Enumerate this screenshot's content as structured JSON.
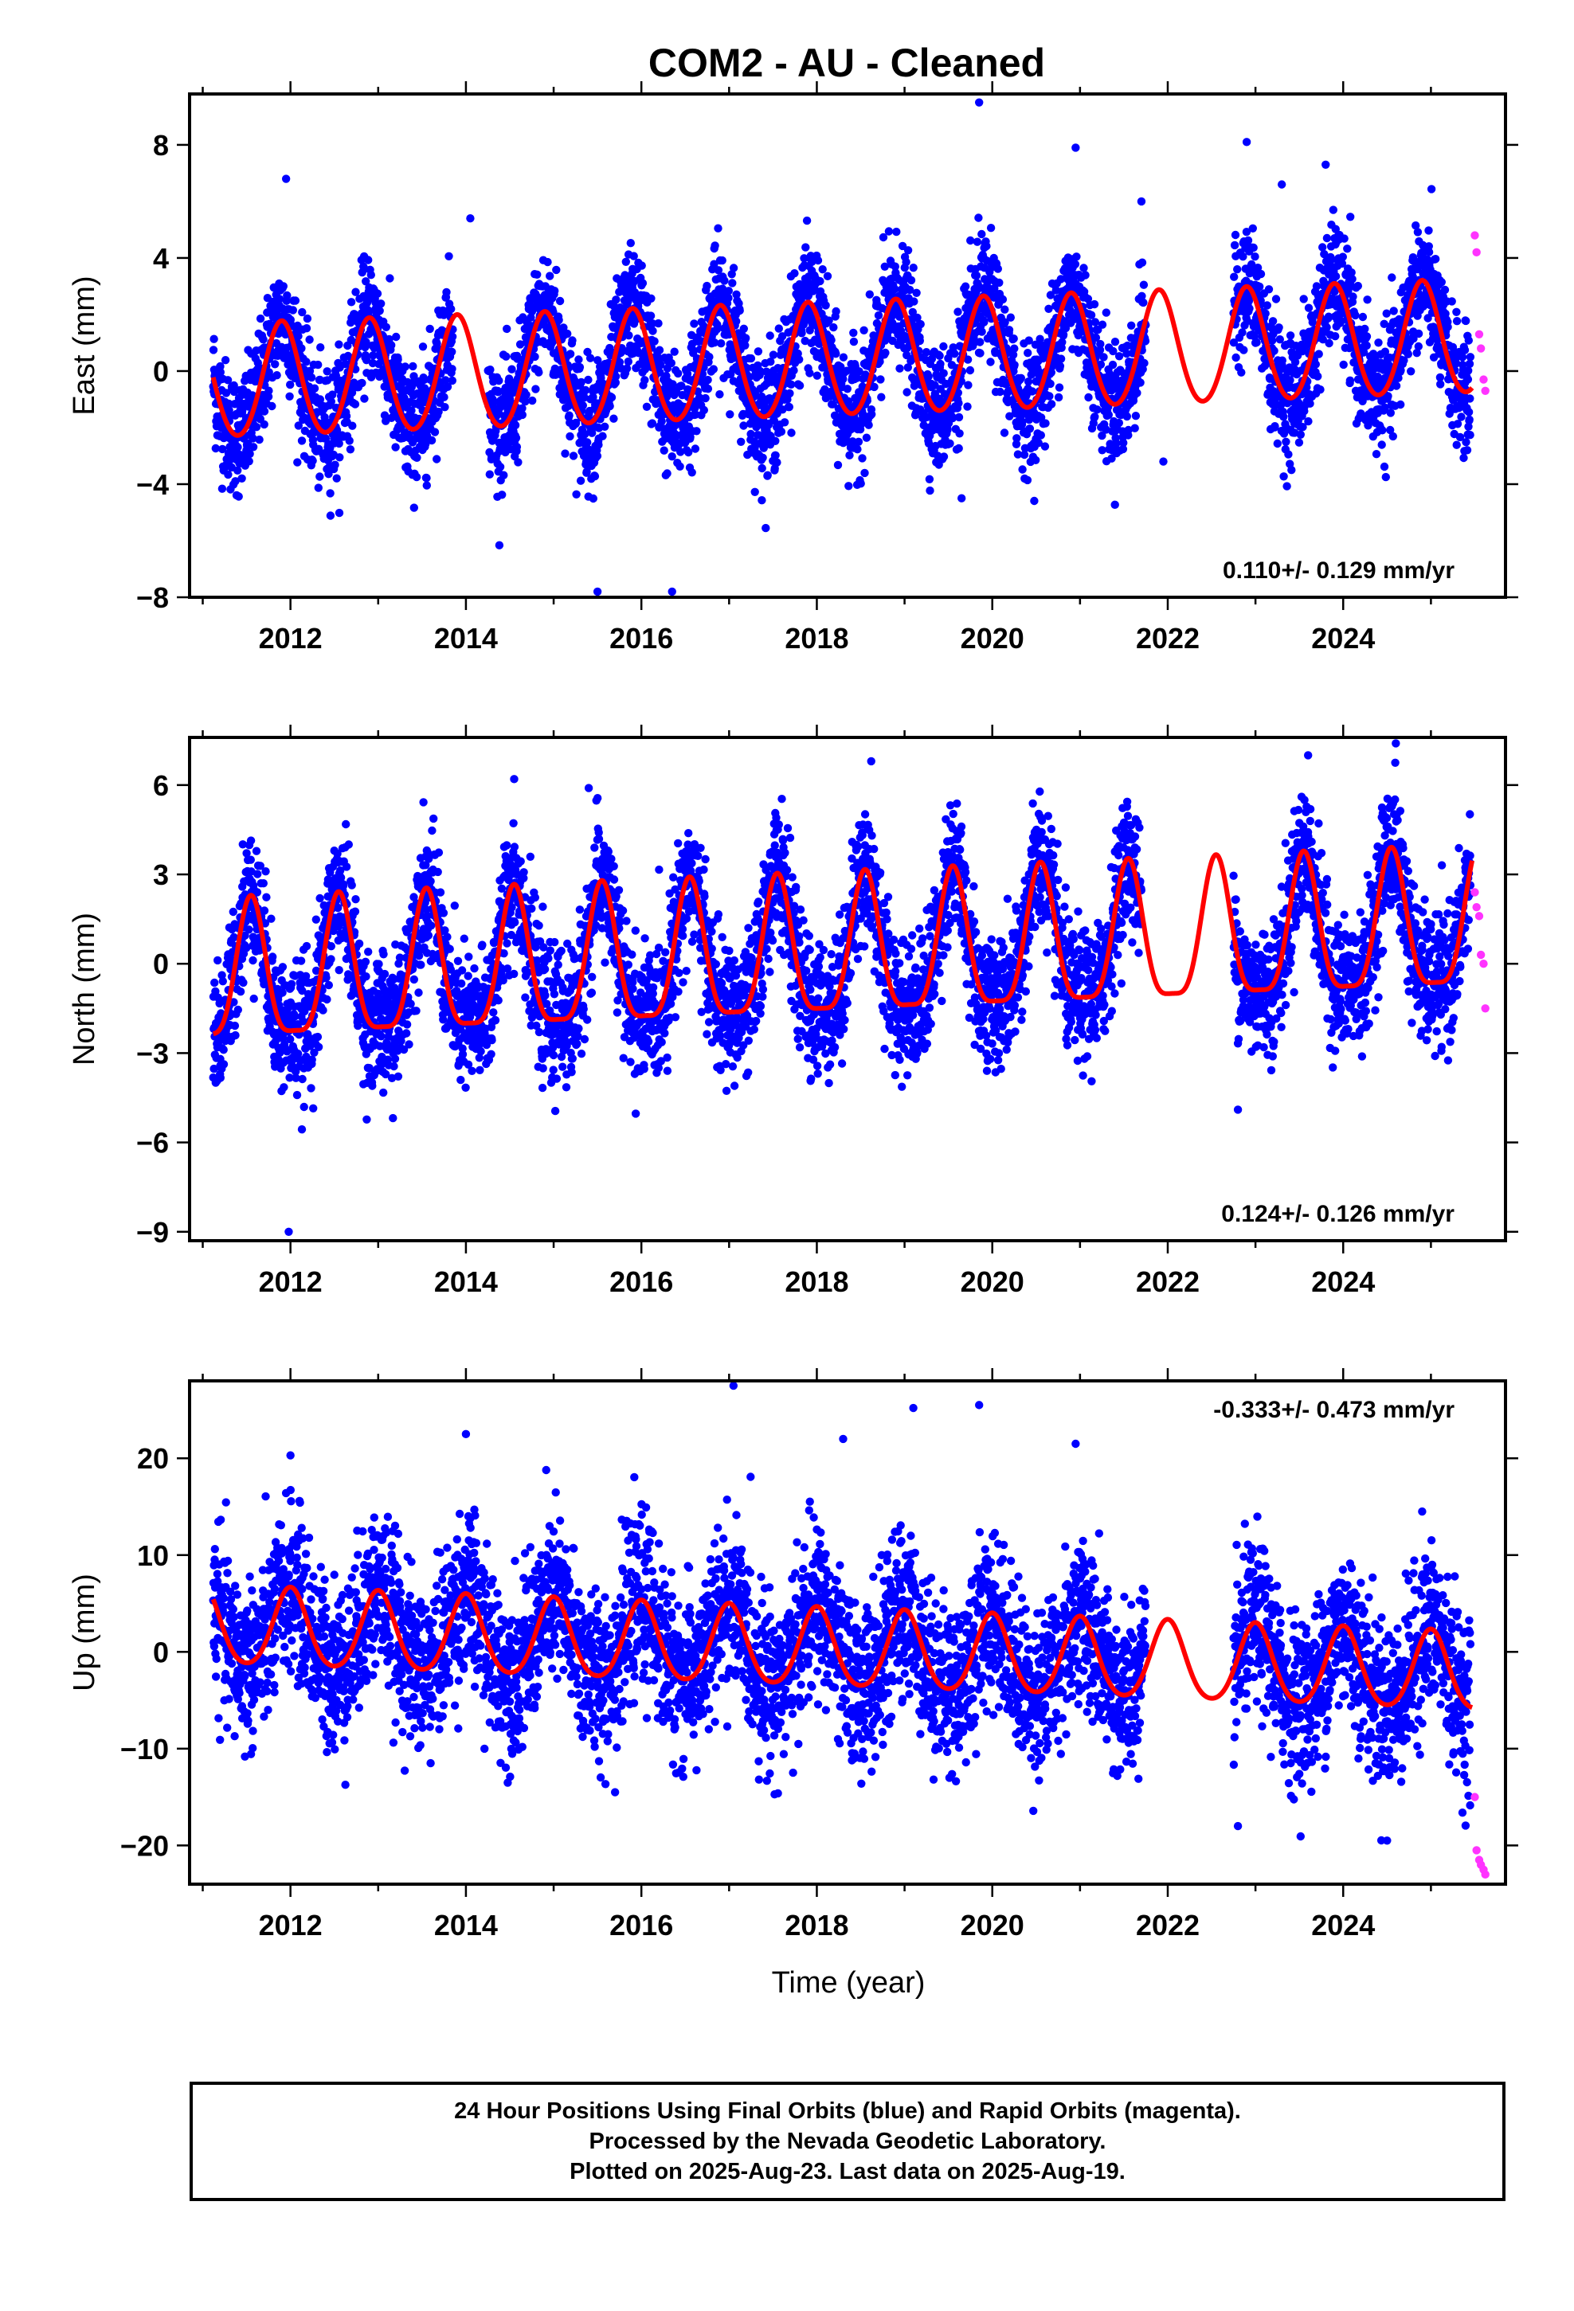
{
  "title": "COM2  - AU - Cleaned",
  "xlabel": "Time (year)",
  "footer": {
    "line1": "24 Hour Positions Using Final Orbits (blue) and Rapid Orbits (magenta).",
    "line2": "Processed by the Nevada Geodetic Laboratory.",
    "line3": "Plotted on 2025-Aug-23. Last data on 2025-Aug-19."
  },
  "colors": {
    "final_orbits": "#0000ff",
    "rapid_orbits": "#ff33ff",
    "model_fit": "#ff0000",
    "frame": "#000000"
  },
  "chart_data": [
    {
      "type": "scatter",
      "ylabel": "East (mm)",
      "rate_text": "0.110+/- 0.129 mm/yr",
      "rate_position": "bottom-right",
      "xlim": [
        2010.85,
        2025.85
      ],
      "ylim": [
        -8,
        9.8
      ],
      "x_ticks": [
        2012,
        2014,
        2016,
        2018,
        2020,
        2022,
        2024
      ],
      "y_ticks": [
        8,
        4,
        0,
        -4,
        -8
      ],
      "grid": false,
      "model": {
        "offset": 0.0,
        "rate": 0.11,
        "annual_amp": 2.0,
        "annual_phase_peak": 2011.9,
        "semiannual_amp": 0.15,
        "mean_at_2018": 0.3
      },
      "series": [
        {
          "role": "final",
          "start": 2011.12,
          "end": 2025.45,
          "gaps": [
            [
              2013.85,
              2014.25
            ],
            [
              2021.75,
              2022.75
            ]
          ],
          "scatter_sd": 1.05
        },
        {
          "role": "rapid",
          "x": [
            2025.5,
            2025.52,
            2025.55,
            2025.57,
            2025.6,
            2025.62
          ],
          "y": [
            4.8,
            4.2,
            1.3,
            0.8,
            -0.3,
            -0.7
          ]
        }
      ],
      "outliers": [
        [
          2011.95,
          6.8
        ],
        [
          2014.05,
          5.4
        ],
        [
          2015.5,
          -7.8
        ],
        [
          2016.35,
          -7.8
        ],
        [
          2019.85,
          9.5
        ],
        [
          2020.95,
          7.9
        ],
        [
          2021.7,
          6.0
        ],
        [
          2022.9,
          8.1
        ],
        [
          2023.3,
          6.6
        ],
        [
          2023.8,
          7.3
        ],
        [
          2019.65,
          -4.5
        ],
        [
          2021.95,
          -3.2
        ]
      ]
    },
    {
      "type": "scatter",
      "ylabel": "North (mm)",
      "rate_text": "0.124+/- 0.126 mm/yr",
      "rate_position": "bottom-right",
      "xlim": [
        2010.85,
        2025.85
      ],
      "ylim": [
        -9.3,
        7.6
      ],
      "x_ticks": [
        2012,
        2014,
        2016,
        2018,
        2020,
        2022,
        2024
      ],
      "y_ticks": [
        6,
        3,
        0,
        -3,
        -6,
        -9
      ],
      "grid": false,
      "model": {
        "offset": 0.0,
        "rate": 0.124,
        "annual_amp": 2.3,
        "annual_phase_peak": 2011.55,
        "semiannual_amp": 0.6,
        "mean_at_2018": 0.2
      },
      "series": [
        {
          "role": "final",
          "start": 2011.12,
          "end": 2025.45,
          "gaps": [
            [
              2021.7,
              2022.75
            ]
          ],
          "scatter_sd": 1.1
        },
        {
          "role": "rapid",
          "x": [
            2025.5,
            2025.52,
            2025.55,
            2025.57,
            2025.6,
            2025.62
          ],
          "y": [
            2.4,
            1.9,
            1.6,
            0.3,
            0.0,
            -1.5
          ]
        }
      ],
      "outliers": [
        [
          2011.98,
          -9.0
        ],
        [
          2018.62,
          6.8
        ],
        [
          2014.55,
          6.2
        ],
        [
          2015.4,
          5.9
        ],
        [
          2022.8,
          -4.9
        ],
        [
          2024.6,
          7.4
        ],
        [
          2023.6,
          7.0
        ],
        [
          2011.2,
          -3.2
        ]
      ]
    },
    {
      "type": "scatter",
      "ylabel": "Up (mm)",
      "rate_text": "-0.333+/- 0.473 mm/yr",
      "rate_position": "top-right",
      "xlim": [
        2010.85,
        2025.85
      ],
      "ylim": [
        -24,
        28
      ],
      "x_ticks": [
        2012,
        2014,
        2016,
        2018,
        2020,
        2022,
        2024
      ],
      "y_ticks": [
        20,
        10,
        0,
        -10,
        -20
      ],
      "grid": false,
      "model": {
        "offset": 0.0,
        "rate": -0.333,
        "annual_amp": 4.0,
        "annual_phase_peak": 2012.0,
        "semiannual_amp": 0.5,
        "mean_at_2018": 0.2
      },
      "series": [
        {
          "role": "final",
          "start": 2011.12,
          "end": 2025.45,
          "gaps": [
            [
              2021.75,
              2022.75
            ]
          ],
          "scatter_sd": 4.2
        },
        {
          "role": "rapid",
          "x": [
            2025.5,
            2025.52,
            2025.55,
            2025.57,
            2025.6,
            2025.62
          ],
          "y": [
            -15.0,
            -20.5,
            -21.5,
            -22.0,
            -22.5,
            -23.0
          ]
        }
      ],
      "outliers": [
        [
          2017.05,
          27.5
        ],
        [
          2019.1,
          25.2
        ],
        [
          2019.85,
          25.5
        ],
        [
          2014.0,
          22.5
        ],
        [
          2012.0,
          20.3
        ],
        [
          2020.95,
          21.5
        ],
        [
          2018.3,
          22.0
        ],
        [
          2024.9,
          14.5
        ],
        [
          2022.8,
          -18.0
        ],
        [
          2024.5,
          -19.5
        ],
        [
          2015.7,
          -14.5
        ]
      ]
    }
  ]
}
